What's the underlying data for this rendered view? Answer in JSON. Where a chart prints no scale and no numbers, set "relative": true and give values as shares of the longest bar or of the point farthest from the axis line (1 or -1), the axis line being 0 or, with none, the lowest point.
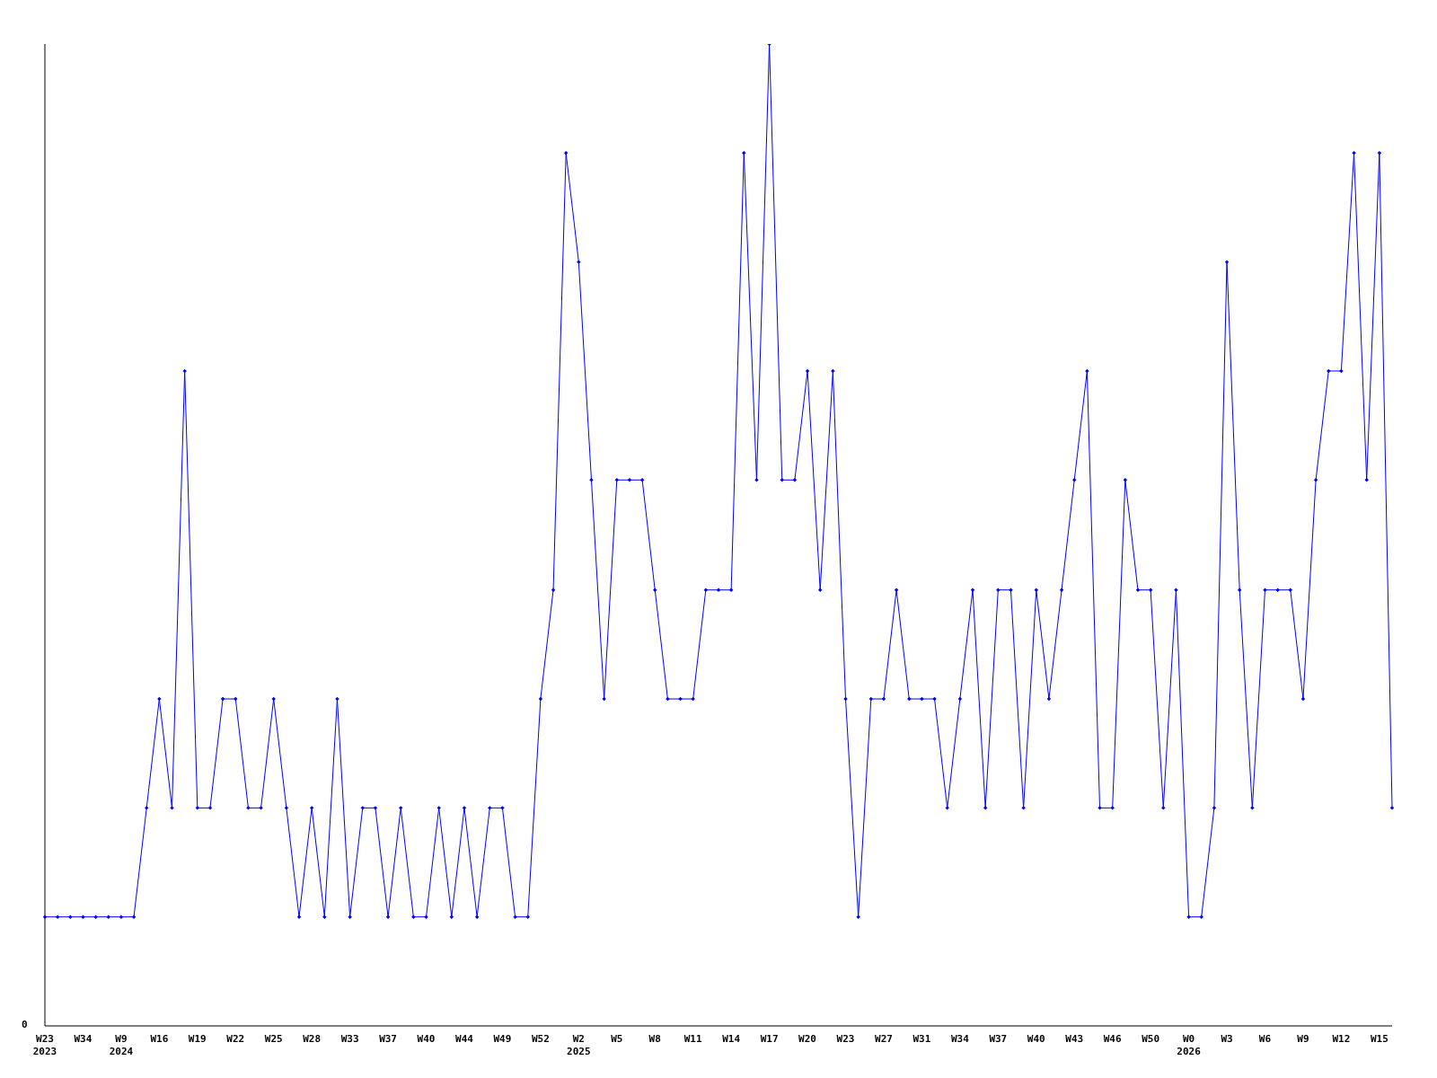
{
  "chart_data": {
    "type": "line",
    "relative": true,
    "annotations": [
      "0"
    ],
    "marker": "diamond",
    "line_style": "solid",
    "grid": false,
    "legend": false,
    "categories": [
      "W23\n2023",
      null,
      null,
      "W34",
      null,
      null,
      "W9\n2024",
      null,
      null,
      "W16",
      null,
      null,
      "W19",
      null,
      null,
      "W22",
      null,
      null,
      "W25",
      null,
      null,
      "W28",
      null,
      null,
      "W33",
      null,
      null,
      "W37",
      null,
      null,
      "W40",
      null,
      null,
      "W44",
      null,
      null,
      "W49",
      null,
      null,
      "W52",
      null,
      null,
      "W2\n2025",
      null,
      null,
      "W5",
      null,
      null,
      "W8",
      null,
      null,
      "W11",
      null,
      null,
      "W14",
      null,
      null,
      "W17",
      null,
      null,
      "W20",
      null,
      null,
      "W23",
      null,
      null,
      "W27",
      null,
      null,
      "W31",
      null,
      null,
      "W34",
      null,
      null,
      "W37",
      null,
      null,
      "W40",
      null,
      null,
      "W43",
      null,
      null,
      "W46",
      null,
      null,
      "W50",
      null,
      null,
      "W0\n2026",
      null,
      null,
      "W3",
      null,
      null,
      "W6",
      null,
      null,
      "W9",
      null,
      null,
      "W12",
      null,
      null,
      "W15",
      null
    ],
    "series": [
      {
        "color": "#0000ff",
        "values": [
          0.111,
          0.111,
          0.111,
          0.111,
          0.111,
          0.111,
          0.111,
          0.111,
          0.222,
          0.333,
          0.222,
          0.667,
          0.222,
          0.222,
          0.333,
          0.333,
          0.222,
          0.222,
          0.333,
          0.222,
          0.111,
          0.222,
          0.111,
          0.333,
          0.111,
          0.222,
          0.222,
          0.111,
          0.222,
          0.111,
          0.111,
          0.222,
          0.111,
          0.222,
          0.111,
          0.222,
          0.222,
          0.111,
          0.111,
          0.333,
          0.444,
          0.889,
          0.778,
          0.556,
          0.333,
          0.556,
          0.556,
          0.556,
          0.444,
          0.333,
          0.333,
          0.333,
          0.444,
          0.444,
          0.444,
          0.889,
          0.556,
          1,
          0.556,
          0.556,
          0.667,
          0.444,
          0.667,
          0.333,
          0.111,
          0.333,
          0.333,
          0.444,
          0.333,
          0.333,
          0.333,
          0.222,
          0.333,
          0.444,
          0.222,
          0.444,
          0.444,
          0.222,
          0.444,
          0.333,
          0.444,
          0.556,
          0.667,
          0.222,
          0.222,
          0.556,
          0.444,
          0.444,
          0.222,
          0.444,
          0.111,
          0.111,
          0.222,
          0.778,
          0.444,
          0.222,
          0.444,
          0.444,
          0.444,
          0.333,
          0.556,
          0.667,
          0.667,
          0.889,
          0.556,
          0.889,
          0.222
        ]
      }
    ]
  }
}
